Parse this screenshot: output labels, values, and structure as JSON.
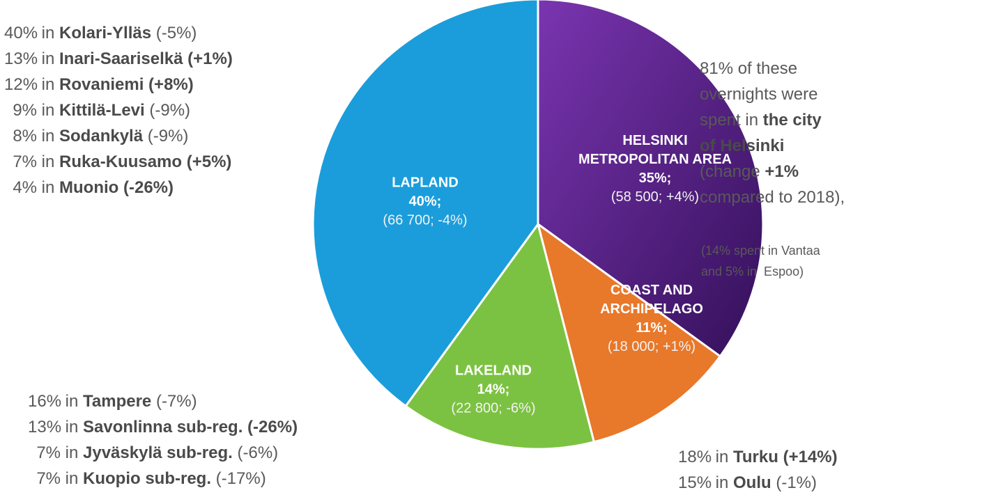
{
  "chart_data": {
    "type": "pie",
    "categories": [
      "HELSINKI METROPOLITAN AREA",
      "COAST AND ARCHIPELAGO",
      "LAKELAND",
      "LAPLAND"
    ],
    "values": [
      35,
      11,
      14,
      40
    ],
    "value_labels": [
      "35%;",
      "11%;",
      "14%;",
      "40%;"
    ],
    "details": [
      "(58 500; +4%)",
      "(18 000; +1%)",
      "(22 800; -6%)",
      "(66 700; -4%)"
    ],
    "colors": [
      "#5a1f8c",
      "#e8782a",
      "#7cc242",
      "#1b9ddb"
    ]
  },
  "annotations": [
    {
      "lines": [
        {
          "parts": [
            "40%",
            " in ",
            "Kolari-Ylläs",
            " (-5%)"
          ],
          "bold": [
            false,
            false,
            true,
            false
          ]
        },
        {
          "parts": [
            "13%",
            " in ",
            "Inari-Saariselkä (+1%)"
          ],
          "bold": [
            false,
            false,
            true
          ]
        },
        {
          "parts": [
            "12%",
            " in ",
            "Rovaniemi (+8%)"
          ],
          "bold": [
            false,
            false,
            true
          ]
        },
        {
          "parts": [
            "9%",
            " in ",
            "Kittilä-Levi",
            " (-9%)"
          ],
          "bold": [
            false,
            false,
            true,
            false
          ]
        },
        {
          "parts": [
            "8%",
            " in ",
            "Sodankylä",
            " (-9%)"
          ],
          "bold": [
            false,
            false,
            true,
            false
          ]
        },
        {
          "parts": [
            "7%",
            " in ",
            "Ruka-Kuusamo (+5%)"
          ],
          "bold": [
            false,
            false,
            true
          ]
        },
        {
          "parts": [
            "4%",
            " in ",
            "Muonio (-26%)"
          ],
          "bold": [
            false,
            false,
            true
          ]
        }
      ]
    },
    {
      "lines": [
        {
          "parts": [
            "16%",
            " in ",
            "Tampere",
            " (-7%)"
          ],
          "bold": [
            false,
            false,
            true,
            false
          ]
        },
        {
          "parts": [
            "13%",
            " in ",
            "Savonlinna sub-reg. (-26%)"
          ],
          "bold": [
            false,
            false,
            true
          ]
        },
        {
          "parts": [
            "7%",
            " in ",
            "Jyväskylä sub-reg.",
            " (-6%)"
          ],
          "bold": [
            false,
            false,
            true,
            false
          ]
        },
        {
          "parts": [
            "7%",
            " in ",
            "Kuopio sub-reg.",
            " (-17%)"
          ],
          "bold": [
            false,
            false,
            true,
            false
          ]
        }
      ]
    },
    {
      "lines": [
        {
          "parts": [
            "81% of these"
          ],
          "bold": [
            false
          ]
        },
        {
          "parts": [
            "overnights were"
          ],
          "bold": [
            false
          ]
        },
        {
          "parts": [
            "spent in ",
            "the city"
          ],
          "bold": [
            false,
            true
          ]
        },
        {
          "parts": [
            "of Helsinki"
          ],
          "bold": [
            true
          ]
        },
        {
          "parts": [
            "(change ",
            "+1%"
          ],
          "bold": [
            false,
            true
          ]
        },
        {
          "parts": [
            "compared to 2018),"
          ],
          "bold": [
            false
          ]
        }
      ]
    },
    {
      "lines": [
        {
          "parts": [
            "(14% spent in Vantaa"
          ],
          "bold": [
            false
          ]
        },
        {
          "parts": [
            "and 5% in  Espoo)"
          ],
          "bold": [
            false
          ]
        }
      ]
    },
    {
      "lines": [
        {
          "parts": [
            "18%",
            " in ",
            "Turku (+14%)"
          ],
          "bold": [
            false,
            false,
            true
          ]
        },
        {
          "parts": [
            "15%",
            " in ",
            "Oulu",
            " (-1%)"
          ],
          "bold": [
            false,
            false,
            true,
            false
          ]
        }
      ]
    }
  ]
}
